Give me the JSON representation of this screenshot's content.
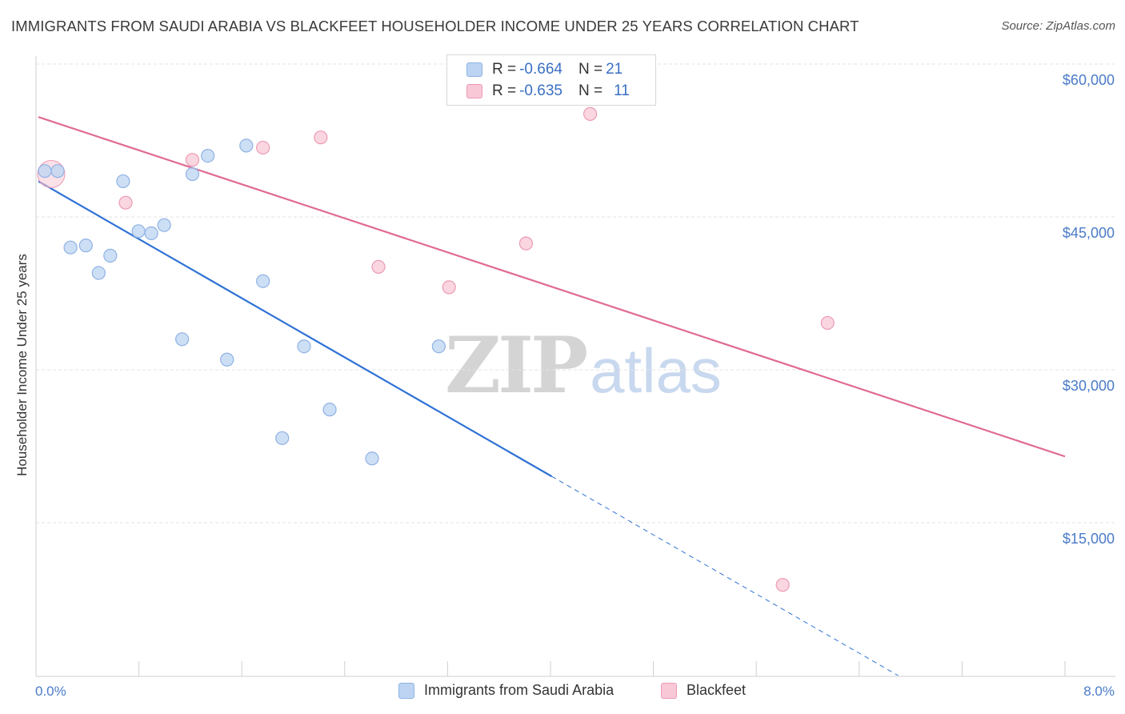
{
  "title": "IMMIGRANTS FROM SAUDI ARABIA VS BLACKFEET HOUSEHOLDER INCOME UNDER 25 YEARS CORRELATION CHART",
  "source": "Source: ZipAtlas.com",
  "watermark": {
    "zip": "ZIP",
    "atlas": "atlas"
  },
  "legend": {
    "rows": [
      {
        "r_label": "R = ",
        "r_value": "-0.664",
        "n_label": "N = ",
        "n_value": "21"
      },
      {
        "r_label": "R = ",
        "r_value": "-0.635",
        "n_label": "N = ",
        "n_value": "11"
      }
    ]
  },
  "colors": {
    "blue_fill": "#bcd4f2",
    "blue_stroke": "#8fb2e4",
    "blue_line": "#2f72d6",
    "pink_fill": "#f8c8d6",
    "pink_stroke": "#ec9ab4",
    "pink_line": "#e06a94",
    "grid": "#e3e3e3",
    "tick_text": "#4a7bc8"
  },
  "chart_data": {
    "type": "scatter",
    "title": "IMMIGRANTS FROM SAUDI ARABIA VS BLACKFEET HOUSEHOLDER INCOME UNDER 25 YEARS CORRELATION CHART",
    "xlabel": "",
    "ylabel": "Householder Income Under 25 years",
    "xlim": [
      0,
      8
    ],
    "ylim": [
      0,
      62000
    ],
    "x_tick_labels": [
      "0.0%",
      "8.0%"
    ],
    "y_ticks": [
      15000,
      30000,
      45000,
      60000
    ],
    "y_tick_labels": [
      "$15,000",
      "$30,000",
      "$45,000",
      "$60,000"
    ],
    "grid": true,
    "legend_position": "bottom",
    "series": [
      {
        "name": "Immigrants from Saudi Arabia",
        "color": "blue",
        "points": [
          [
            0.05,
            49500
          ],
          [
            0.15,
            49500
          ],
          [
            0.25,
            42000
          ],
          [
            0.37,
            42200
          ],
          [
            0.47,
            39500
          ],
          [
            0.56,
            41200
          ],
          [
            0.66,
            48500
          ],
          [
            0.78,
            43600
          ],
          [
            0.88,
            43400
          ],
          [
            0.98,
            44200
          ],
          [
            1.12,
            33000
          ],
          [
            1.2,
            49200
          ],
          [
            1.32,
            51000
          ],
          [
            1.47,
            31000
          ],
          [
            1.62,
            52000
          ],
          [
            1.75,
            38700
          ],
          [
            1.9,
            23300
          ],
          [
            2.07,
            32300
          ],
          [
            2.27,
            26100
          ],
          [
            2.6,
            21300
          ],
          [
            3.12,
            32300
          ]
        ],
        "trend": {
          "x0": 0.0,
          "y0": 48500,
          "x_solid_end": 4.0,
          "x1": 6.7,
          "y1": 0
        }
      },
      {
        "name": "Blackfeet",
        "color": "pink",
        "points": [
          [
            0.1,
            49200
          ],
          [
            0.68,
            46400
          ],
          [
            1.2,
            50600
          ],
          [
            1.75,
            51800
          ],
          [
            2.2,
            52800
          ],
          [
            2.65,
            40100
          ],
          [
            3.2,
            38100
          ],
          [
            3.8,
            42400
          ],
          [
            4.3,
            55100
          ],
          [
            6.15,
            34600
          ],
          [
            5.8,
            8900
          ]
        ],
        "trend": {
          "x0": 0.0,
          "y0": 54800,
          "x1": 8.0,
          "y1": 21500
        }
      }
    ]
  }
}
